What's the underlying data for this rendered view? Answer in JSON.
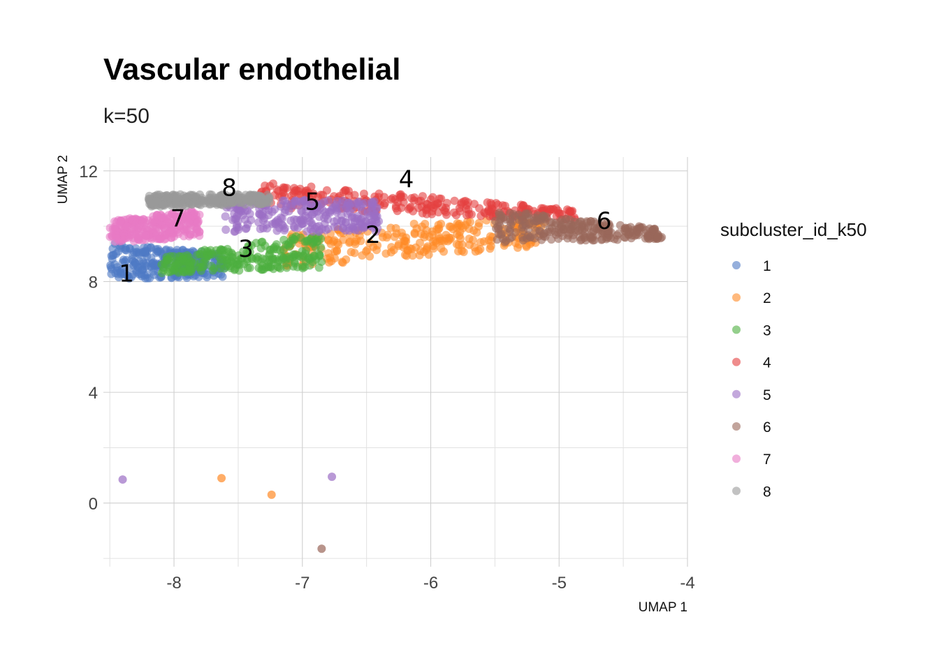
{
  "chart_data": {
    "type": "scatter",
    "title": "Vascular endothelial",
    "subtitle": "k=50",
    "xlabel": "UMAP 1",
    "ylabel": "UMAP 2",
    "xlim": [
      -8.55,
      -4.0
    ],
    "ylim": [
      -2.3,
      12.5
    ],
    "x_ticks": [
      -8,
      -7,
      -6,
      -5,
      -4
    ],
    "y_ticks": [
      0,
      4,
      8,
      12
    ],
    "grid": true,
    "legend": {
      "title": "subcluster_id_k50",
      "position": "right"
    },
    "series": [
      {
        "name": "1",
        "color": "#4E79C4",
        "regions": [
          {
            "x": [
              -8.5,
              -7.6
            ],
            "y_low": [
              8.1,
              8.15
            ],
            "y_high": [
              9.4,
              9.0
            ]
          }
        ],
        "points": []
      },
      {
        "name": "2",
        "color": "#FF8A26",
        "regions": [
          {
            "x": [
              -7.15,
              -5.1
            ],
            "y_low": [
              8.5,
              9.3
            ],
            "y_high": [
              9.8,
              10.4
            ]
          }
        ],
        "points": [
          {
            "x": -7.63,
            "y": 0.9
          },
          {
            "x": -7.24,
            "y": 0.3
          }
        ]
      },
      {
        "name": "3",
        "color": "#4CAF3F",
        "regions": [
          {
            "x": [
              -8.1,
              -6.85
            ],
            "y_low": [
              8.3,
              8.5
            ],
            "y_high": [
              8.9,
              9.8
            ]
          }
        ],
        "points": []
      },
      {
        "name": "4",
        "color": "#E5403F",
        "regions": [
          {
            "x": [
              -7.35,
              -4.85
            ],
            "y_low": [
              10.7,
              10.2
            ],
            "y_high": [
              11.6,
              10.6
            ]
          }
        ],
        "points": []
      },
      {
        "name": "5",
        "color": "#9B6EC4",
        "regions": [
          {
            "x": [
              -7.6,
              -6.4
            ],
            "y_low": [
              9.8,
              9.8
            ],
            "y_high": [
              11.0,
              10.9
            ]
          }
        ],
        "points": [
          {
            "x": -8.4,
            "y": 0.85
          },
          {
            "x": -6.77,
            "y": 0.95
          }
        ]
      },
      {
        "name": "6",
        "color": "#9A675A",
        "regions": [
          {
            "x": [
              -5.5,
              -4.2
            ],
            "y_low": [
              9.4,
              9.55
            ],
            "y_high": [
              10.6,
              9.9
            ]
          }
        ],
        "points": [
          {
            "x": -6.85,
            "y": -1.65
          }
        ]
      },
      {
        "name": "7",
        "color": "#E879C4",
        "regions": [
          {
            "x": [
              -8.5,
              -7.8
            ],
            "y_low": [
              9.4,
              9.6
            ],
            "y_high": [
              10.2,
              10.6
            ]
          }
        ],
        "points": []
      },
      {
        "name": "8",
        "color": "#999999",
        "regions": [
          {
            "x": [
              -8.2,
              -7.25
            ],
            "y_low": [
              10.7,
              10.8
            ],
            "y_high": [
              11.15,
              11.15
            ]
          }
        ],
        "points": []
      }
    ],
    "annotations": [
      {
        "text": "1",
        "x": -8.37,
        "y": 8.3
      },
      {
        "text": "2",
        "x": -6.45,
        "y": 9.7
      },
      {
        "text": "3",
        "x": -7.44,
        "y": 9.2
      },
      {
        "text": "4",
        "x": -6.19,
        "y": 11.7
      },
      {
        "text": "5",
        "x": -6.92,
        "y": 10.9
      },
      {
        "text": "6",
        "x": -4.65,
        "y": 10.2
      },
      {
        "text": "7",
        "x": -7.97,
        "y": 10.3
      },
      {
        "text": "8",
        "x": -7.57,
        "y": 11.4
      }
    ]
  }
}
